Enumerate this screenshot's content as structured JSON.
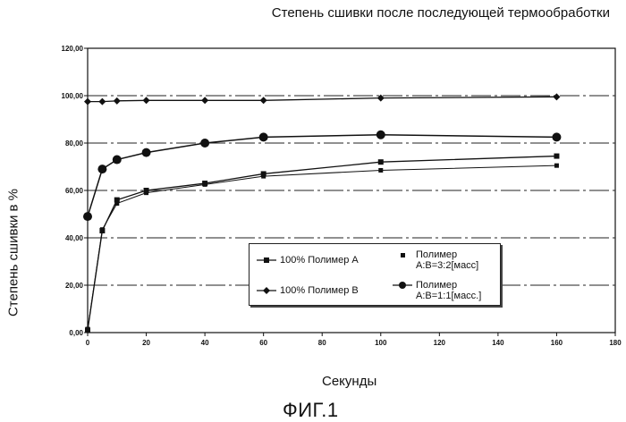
{
  "chart_data": {
    "type": "line",
    "title": "Степень сшивки после последующей термообработки",
    "xlabel": "Секунды",
    "ylabel": "Степень сшивки в %",
    "xlim": [
      0,
      180
    ],
    "ylim": [
      0,
      120
    ],
    "x_ticks": [
      "0",
      "20",
      "40",
      "60",
      "80",
      "100",
      "120",
      "140",
      "160",
      "180"
    ],
    "y_ticks": [
      "0,00",
      "20,00",
      "40,00",
      "60,00",
      "80,00",
      "100,00",
      "120,00"
    ],
    "legend_position": "bottom-center",
    "series": [
      {
        "name": "100% Полимер A",
        "marker": "square",
        "x": [
          0,
          5,
          10,
          20,
          40,
          60,
          100,
          160
        ],
        "y": [
          1,
          43,
          56,
          60,
          63,
          67,
          72,
          74.5
        ]
      },
      {
        "name": "100% Полимер B",
        "marker": "diamond",
        "x": [
          0,
          5,
          10,
          20,
          40,
          60,
          100,
          160
        ],
        "y": [
          97.5,
          97.5,
          97.8,
          98,
          98,
          98,
          99,
          99.5
        ]
      },
      {
        "name": "Полимер A:B=3:2[масс]",
        "marker": "small-square",
        "x": [
          0,
          5,
          10,
          20,
          40,
          60,
          100,
          160
        ],
        "y": [
          1.5,
          43.5,
          54.5,
          59,
          62.5,
          66,
          68.5,
          70.5
        ]
      },
      {
        "name": "Полимер A:B=1:1[масс.]",
        "marker": "circle",
        "x": [
          0,
          5,
          10,
          20,
          40,
          60,
          100,
          160
        ],
        "y": [
          49,
          69,
          73,
          76,
          80,
          82.5,
          83.5,
          82.5
        ]
      }
    ]
  },
  "figure_label": "ФИГ.1",
  "legend": {
    "a_label": "100% Полимер A",
    "b_label": "100% Полимер B",
    "c_line1": "Полимер",
    "c_line2": "A:B=3:2[масс]",
    "d_line1": "Полимер",
    "d_line2": "A:B=1:1[масс.]"
  }
}
